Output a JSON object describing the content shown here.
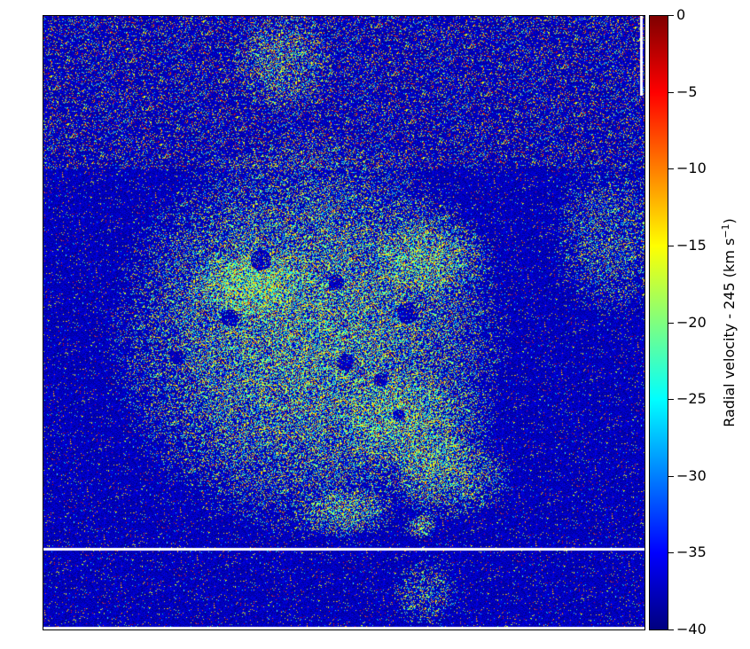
{
  "colorbar": {
    "label_main": "Radial velocity - 245 (km s",
    "label_sup": "−1",
    "label_end": ")",
    "ticks": [
      "0",
      "−5",
      "−10",
      "−15",
      "−20",
      "−25",
      "−30",
      "−35",
      "−40"
    ],
    "range": [
      -40,
      0
    ],
    "colormap": "jet"
  },
  "colors": {
    "background_low": "#00007f",
    "high": "#7f0000"
  }
}
